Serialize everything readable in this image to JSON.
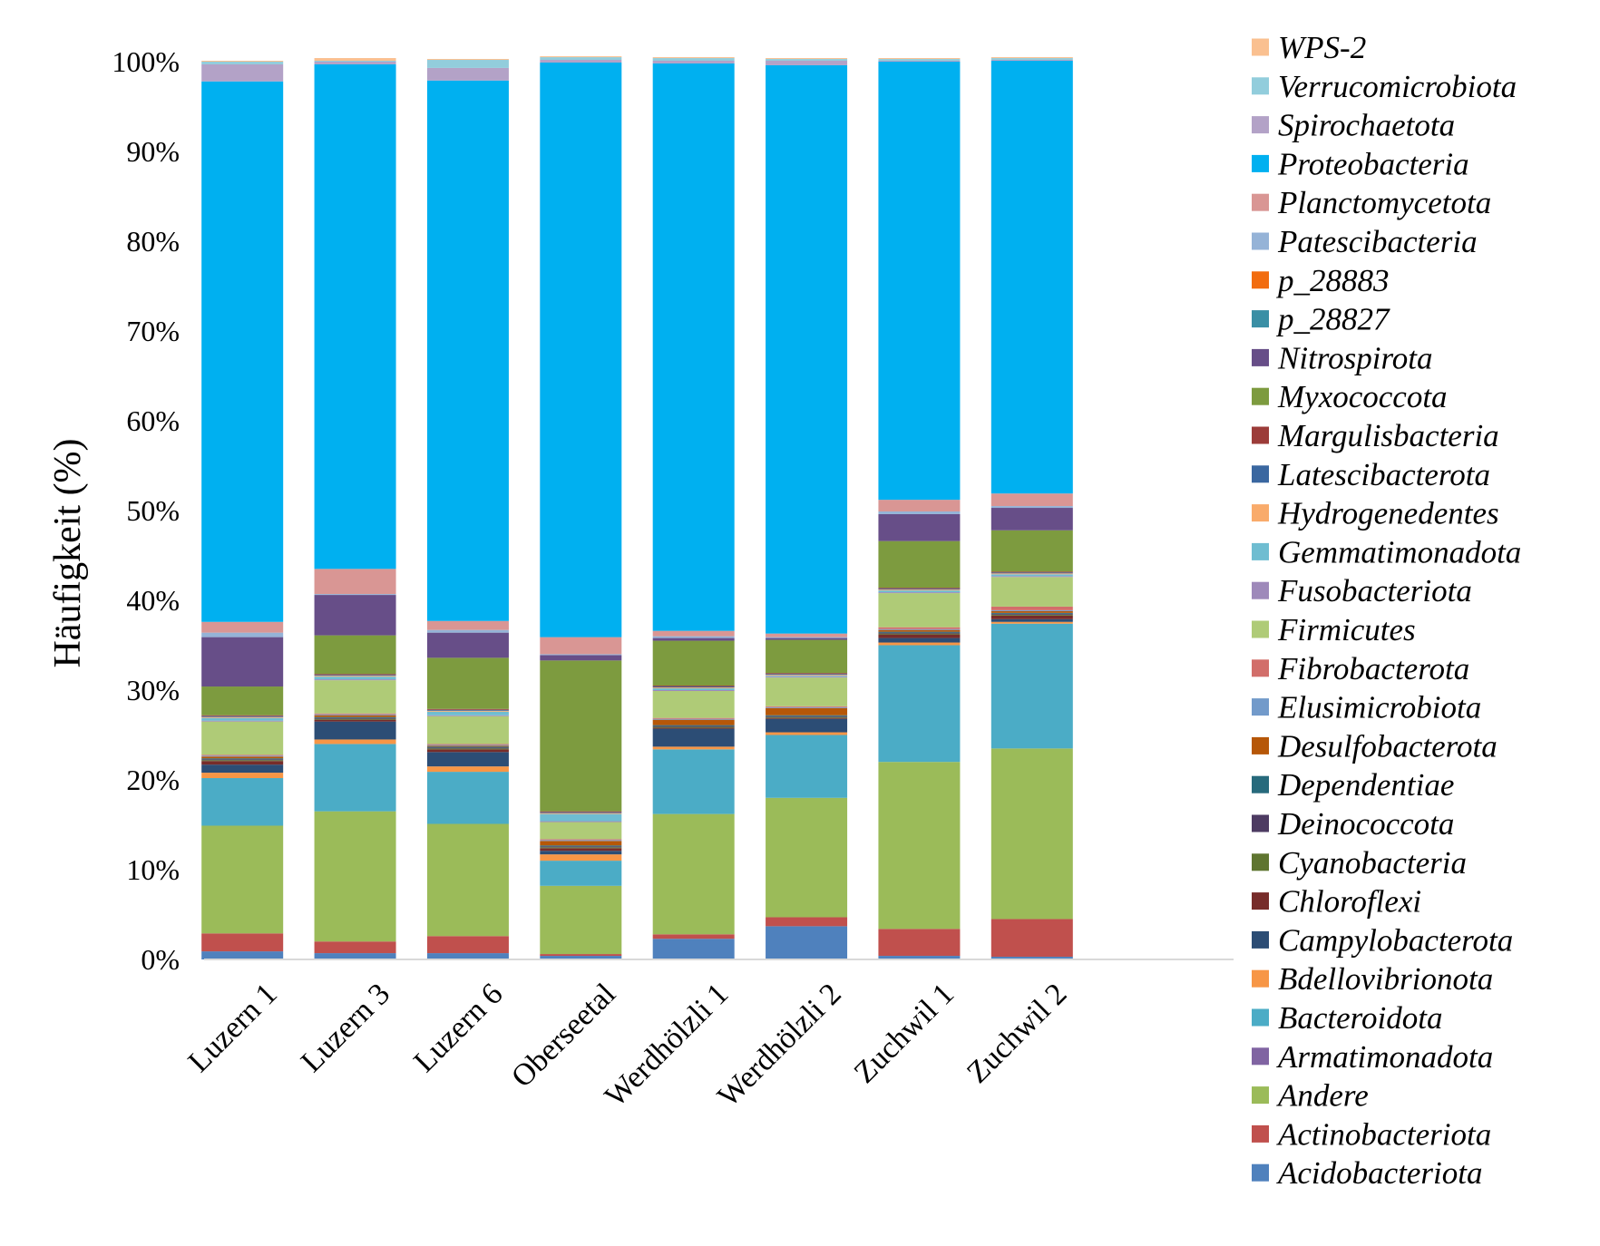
{
  "chart_data": {
    "type": "bar",
    "stacked": true,
    "ylabel": "Häufigkeit (%)",
    "xlabel": "",
    "ylim": [
      0,
      100
    ],
    "yticks": [
      "0%",
      "10%",
      "20%",
      "30%",
      "40%",
      "50%",
      "60%",
      "70%",
      "80%",
      "90%",
      "100%"
    ],
    "grid": false,
    "legend_position": "right",
    "categories": [
      "Luzern 1",
      "Luzern 3",
      "Luzern 6",
      "Oberseetal",
      "Werdhölzli 1",
      "Werdhölzli 2",
      "Zuchwil 1",
      "Zuchwil 2"
    ],
    "series": [
      {
        "name": "Acidobacteriota",
        "color": "#4F81BD",
        "values": [
          0.9,
          0.7,
          0.7,
          0.4,
          2.3,
          3.7,
          0.4,
          0.3
        ]
      },
      {
        "name": "Actinobacteriota",
        "color": "#C0504D",
        "values": [
          2.0,
          1.3,
          1.9,
          0.2,
          0.5,
          1.0,
          3.0,
          4.2
        ]
      },
      {
        "name": "Andere",
        "color": "#9BBB59",
        "values": [
          12.0,
          14.5,
          12.5,
          7.6,
          13.4,
          13.3,
          18.6,
          19.0
        ]
      },
      {
        "name": "Armatimonadota",
        "color": "#8064A2",
        "values": [
          0,
          0,
          0,
          0,
          0,
          0,
          0,
          0
        ]
      },
      {
        "name": "Bacteroidota",
        "color": "#4BACC6",
        "values": [
          5.3,
          7.5,
          5.8,
          2.8,
          7.2,
          7.0,
          13.0,
          13.9
        ]
      },
      {
        "name": "Bdellovibrionota",
        "color": "#F79646",
        "values": [
          0.6,
          0.5,
          0.6,
          0.7,
          0.3,
          0.3,
          0.3,
          0.2
        ]
      },
      {
        "name": "Campylobacterota",
        "color": "#2C4D75",
        "values": [
          0.9,
          2.0,
          1.6,
          0.4,
          2.0,
          1.5,
          0.5,
          0.3
        ]
      },
      {
        "name": "Chloroflexi",
        "color": "#772C2A",
        "values": [
          0.4,
          0.2,
          0.3,
          0.3,
          0.1,
          0.1,
          0.4,
          0.4
        ]
      },
      {
        "name": "Cyanobacteria",
        "color": "#5F7530",
        "values": [
          0.1,
          0.1,
          0.1,
          0.1,
          0.1,
          0.1,
          0.1,
          0.1
        ]
      },
      {
        "name": "Deinococcota",
        "color": "#4D3B62",
        "values": [
          0.1,
          0.1,
          0.1,
          0.1,
          0.1,
          0.1,
          0.1,
          0.1
        ]
      },
      {
        "name": "Dependentiae",
        "color": "#276A7C",
        "values": [
          0.1,
          0.1,
          0.1,
          0.1,
          0.1,
          0.1,
          0.1,
          0.1
        ]
      },
      {
        "name": "Desulfobacterota",
        "color": "#B65708",
        "values": [
          0.2,
          0.2,
          0.1,
          0.5,
          0.6,
          0.8,
          0.2,
          0.2
        ]
      },
      {
        "name": "Elusimicrobiota",
        "color": "#729ACA",
        "values": [
          0.1,
          0.1,
          0.1,
          0.1,
          0.1,
          0.1,
          0.1,
          0.1
        ]
      },
      {
        "name": "Fibrobacterota",
        "color": "#D26E6A",
        "values": [
          0.1,
          0.1,
          0.1,
          0.1,
          0.1,
          0.1,
          0.2,
          0.4
        ]
      },
      {
        "name": "Firmicutes",
        "color": "#AFCB77",
        "values": [
          3.7,
          3.7,
          3.1,
          1.9,
          3.0,
          3.2,
          3.8,
          3.3
        ]
      },
      {
        "name": "Fusobacteriota",
        "color": "#9E89BA",
        "values": [
          0.1,
          0.1,
          0.1,
          0.1,
          0.1,
          0.1,
          0.1,
          0.1
        ]
      },
      {
        "name": "Gemmatimonadota",
        "color": "#6FBDD1",
        "values": [
          0.3,
          0.3,
          0.4,
          0.8,
          0.2,
          0.1,
          0.2,
          0.2
        ]
      },
      {
        "name": "Hydrogenedentes",
        "color": "#F9AB6B",
        "values": [
          0.1,
          0.1,
          0.1,
          0.1,
          0.1,
          0.1,
          0.1,
          0.1
        ]
      },
      {
        "name": "Latescibacterota",
        "color": "#3A67A0",
        "values": [
          0.1,
          0.1,
          0.1,
          0.1,
          0.1,
          0.1,
          0.1,
          0.1
        ]
      },
      {
        "name": "Margulisbacteria",
        "color": "#9C3C39",
        "values": [
          0.1,
          0.1,
          0.1,
          0.1,
          0.1,
          0.1,
          0.1,
          0.1
        ]
      },
      {
        "name": "Myxococcota",
        "color": "#7D9B3F",
        "values": [
          3.2,
          4.3,
          5.7,
          16.8,
          5.0,
          3.7,
          5.2,
          4.6
        ]
      },
      {
        "name": "Nitrospirota",
        "color": "#674E88",
        "values": [
          5.5,
          4.5,
          2.8,
          0.6,
          0.3,
          0.2,
          3.0,
          2.5
        ]
      },
      {
        "name": "p_28827",
        "color": "#3A8FA5",
        "values": [
          0,
          0,
          0,
          0,
          0,
          0,
          0,
          0
        ]
      },
      {
        "name": "p_28883",
        "color": "#F26C0F",
        "values": [
          0,
          0,
          0,
          0,
          0,
          0,
          0,
          0
        ]
      },
      {
        "name": "Patescibacteria",
        "color": "#95B3D7",
        "values": [
          0.5,
          0.1,
          0.3,
          0.1,
          0.2,
          0.1,
          0.3,
          0.2
        ]
      },
      {
        "name": "Planctomycetota",
        "color": "#D99694",
        "values": [
          1.2,
          2.8,
          1.0,
          1.9,
          0.6,
          0.4,
          1.3,
          1.4
        ]
      },
      {
        "name": "Proteobacteria",
        "color": "#00B0F0",
        "values": [
          60.2,
          56.2,
          60.2,
          64.0,
          63.2,
          63.3,
          48.8,
          48.2
        ]
      },
      {
        "name": "Spirochaetota",
        "color": "#B3A2C7",
        "values": [
          1.9,
          0.3,
          1.4,
          0.3,
          0.3,
          0.5,
          0.1,
          0.1
        ]
      },
      {
        "name": "Verrucomicrobiota",
        "color": "#92CDDC",
        "values": [
          0.3,
          0.1,
          0.9,
          0.3,
          0.3,
          0.2,
          0.2,
          0.2
        ]
      },
      {
        "name": "WPS-2",
        "color": "#FAC090",
        "values": [
          0.1,
          0.3,
          0.1,
          0.1,
          0.1,
          0.1,
          0.1,
          0.1
        ]
      }
    ],
    "legend_order": [
      "WPS-2",
      "Verrucomicrobiota",
      "Spirochaetota",
      "Proteobacteria",
      "Planctomycetota",
      "Patescibacteria",
      "p_28883",
      "p_28827",
      "Nitrospirota",
      "Myxococcota",
      "Margulisbacteria",
      "Latescibacterota",
      "Hydrogenedentes",
      "Gemmatimonadota",
      "Fusobacteriota",
      "Firmicutes",
      "Fibrobacterota",
      "Elusimicrobiota",
      "Desulfobacterota",
      "Dependentiae",
      "Deinococcota",
      "Cyanobacteria",
      "Chloroflexi",
      "Campylobacterota",
      "Bdellovibrionota",
      "Bacteroidota",
      "Armatimonadota",
      "Andere",
      "Actinobacteriota",
      "Acidobacteriota"
    ]
  }
}
